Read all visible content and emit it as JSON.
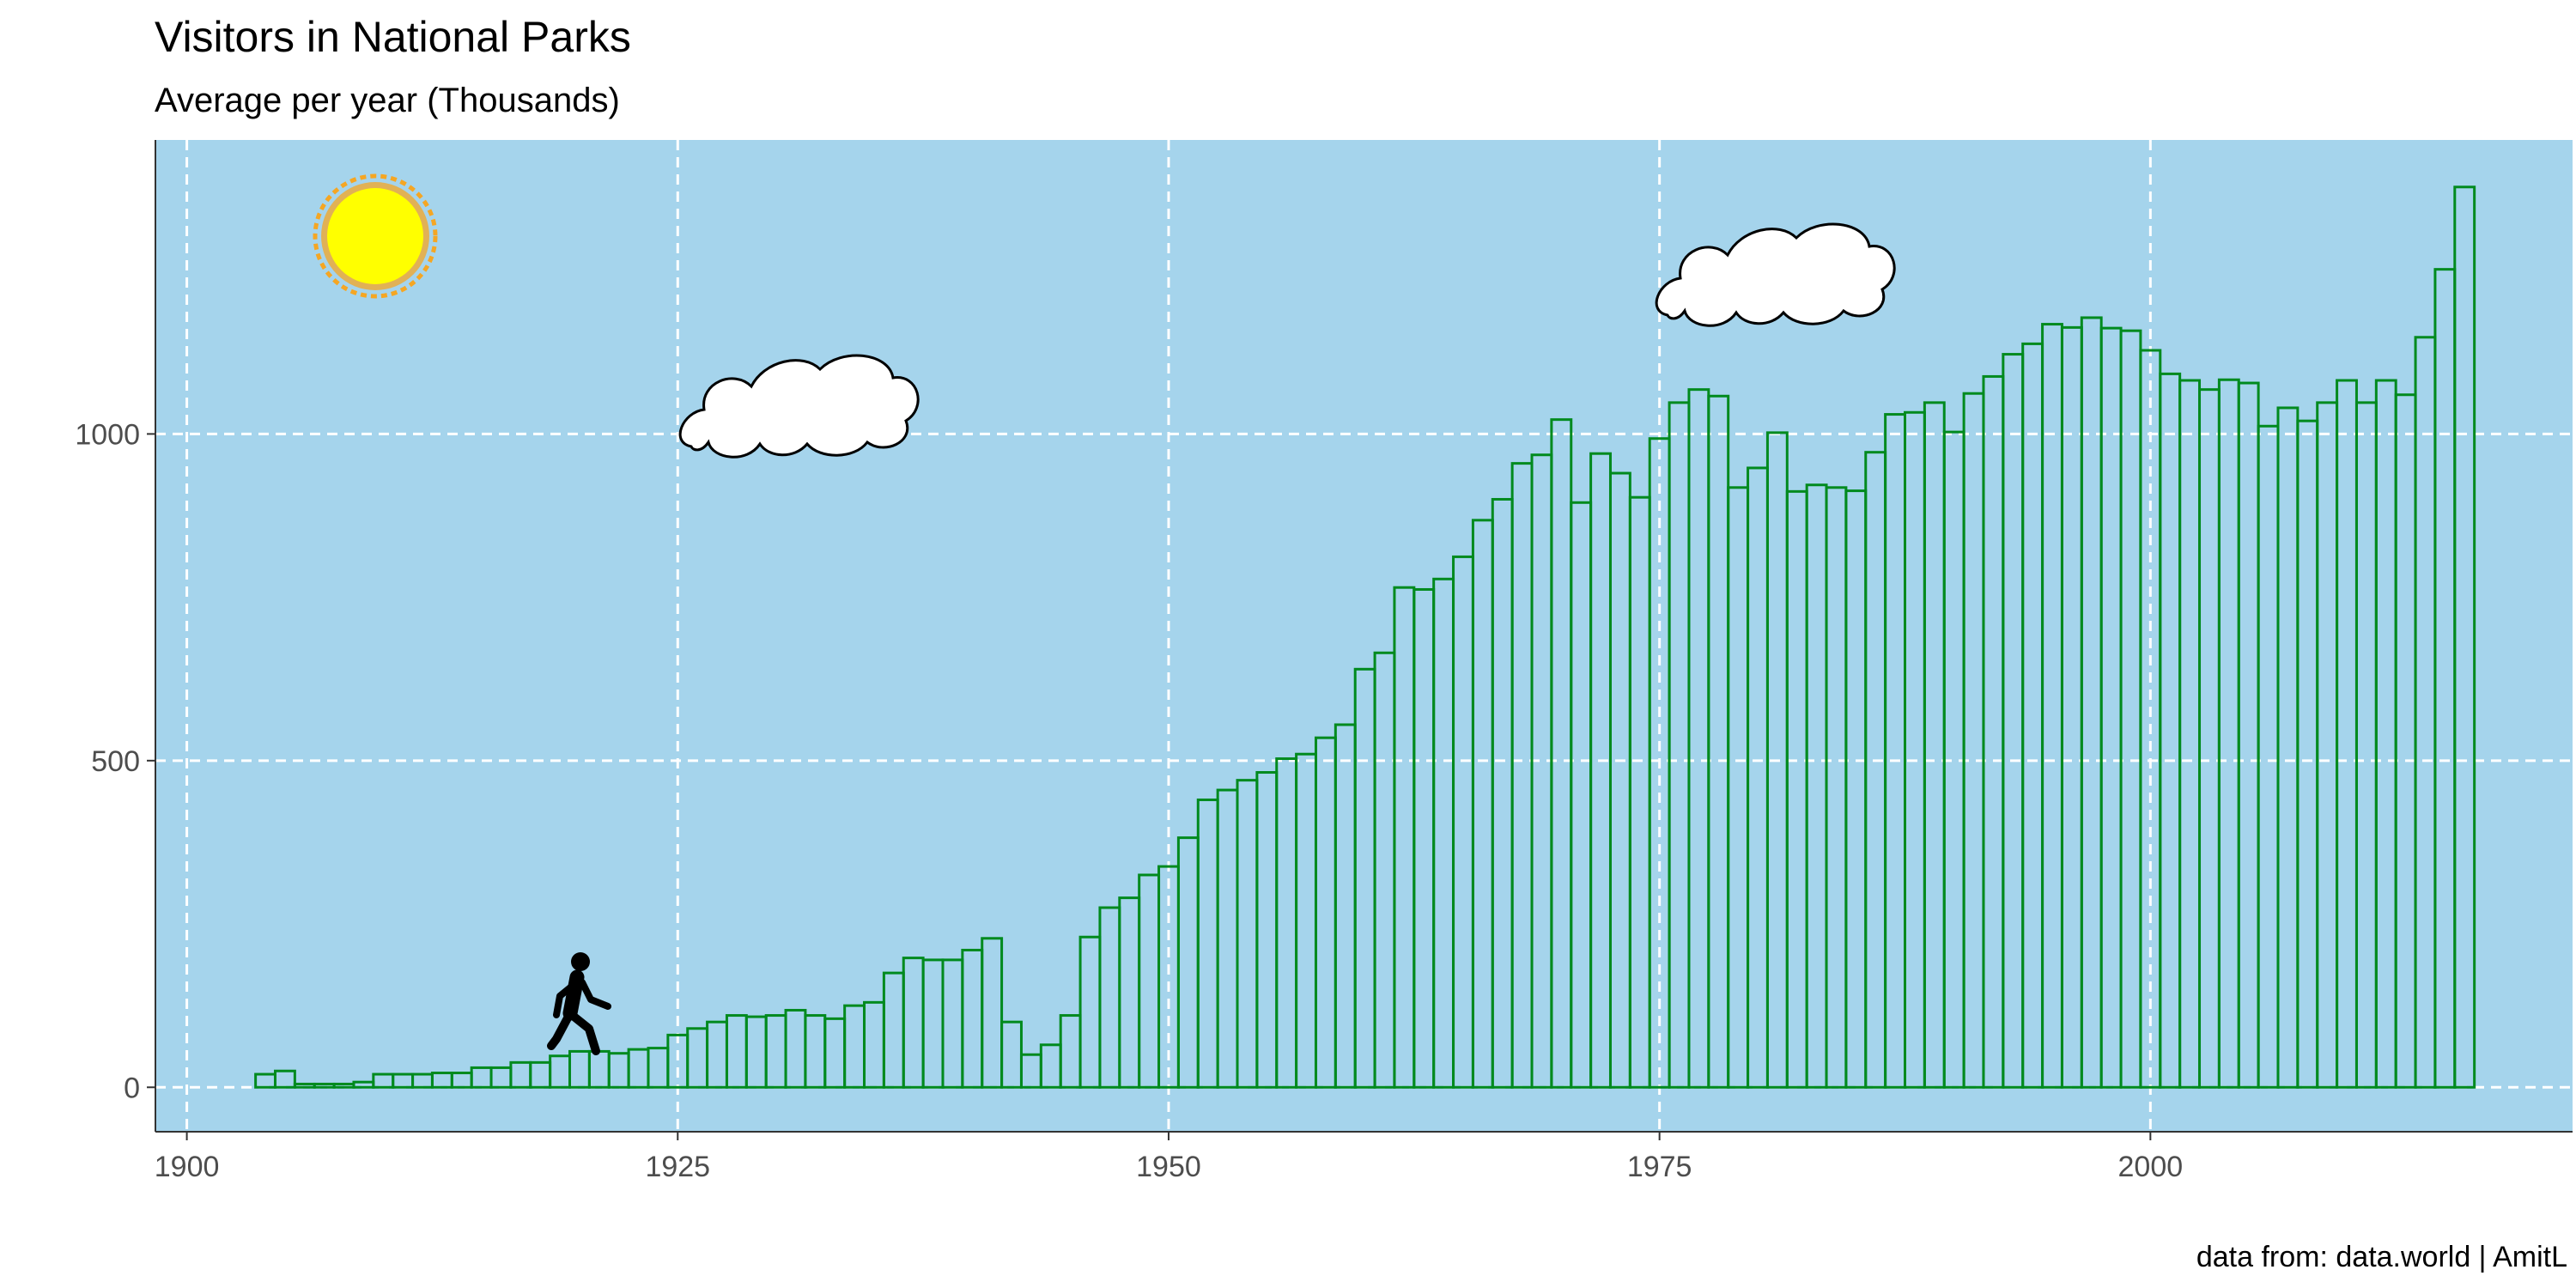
{
  "chart_data": {
    "type": "bar",
    "title": "Visitors in National Parks",
    "subtitle": "Average per year (Thousands)",
    "caption": "data from: data.world | AmitL",
    "xlabel": "",
    "ylabel": "",
    "xlim": [
      1898.4,
      2021.5
    ],
    "ylim": [
      -68,
      1450
    ],
    "x_ticks": [
      "1900",
      "1925",
      "1950",
      "1975",
      "2000"
    ],
    "y_ticks": [
      "0",
      "500",
      "1000"
    ],
    "grid": true,
    "grid_style": "dashed",
    "colors": {
      "panel": "#a5d4ec",
      "bar_outline": "#008a1e",
      "grid": "#ffffff",
      "sun": "#ffff00",
      "sun_ring": "#f5a623",
      "cloud": "#ffffff"
    },
    "icons": [
      "sun-icon",
      "cloud-icon",
      "cloud-icon",
      "walking-person-icon"
    ],
    "x": [
      1904,
      1905,
      1906,
      1907,
      1908,
      1909,
      1910,
      1911,
      1912,
      1913,
      1914,
      1915,
      1916,
      1917,
      1918,
      1919,
      1920,
      1921,
      1922,
      1923,
      1924,
      1925,
      1926,
      1927,
      1928,
      1929,
      1930,
      1931,
      1932,
      1933,
      1934,
      1935,
      1936,
      1937,
      1938,
      1939,
      1940,
      1941,
      1942,
      1943,
      1944,
      1945,
      1946,
      1947,
      1948,
      1949,
      1950,
      1951,
      1952,
      1953,
      1954,
      1955,
      1956,
      1957,
      1958,
      1959,
      1960,
      1961,
      1962,
      1963,
      1964,
      1965,
      1966,
      1967,
      1968,
      1969,
      1970,
      1971,
      1972,
      1973,
      1974,
      1975,
      1976,
      1977,
      1978,
      1979,
      1980,
      1981,
      1982,
      1983,
      1984,
      1985,
      1986,
      1987,
      1988,
      1989,
      1990,
      1991,
      1992,
      1993,
      1994,
      1995,
      1996,
      1997,
      1998,
      1999,
      2000,
      2001,
      2002,
      2003,
      2004,
      2005,
      2006,
      2007,
      2008,
      2009,
      2010,
      2011,
      2012,
      2013,
      2014,
      2015,
      2016
    ],
    "values": [
      20,
      25,
      5,
      5,
      5,
      8,
      20,
      20,
      20,
      22,
      22,
      30,
      30,
      38,
      38,
      48,
      55,
      55,
      52,
      58,
      60,
      80,
      90,
      100,
      110,
      108,
      110,
      118,
      110,
      105,
      125,
      130,
      175,
      198,
      195,
      195,
      210,
      228,
      100,
      50,
      65,
      110,
      230,
      275,
      290,
      325,
      338,
      382,
      440,
      455,
      470,
      482,
      503,
      510,
      535,
      555,
      640,
      665,
      765,
      762,
      778,
      812,
      868,
      900,
      955,
      968,
      1022,
      895,
      970,
      940,
      903,
      993,
      1048,
      1068,
      1058,
      918,
      948,
      1002,
      912,
      922,
      918,
      913,
      972,
      1030,
      1033,
      1048,
      1003,
      1062,
      1088,
      1122,
      1138,
      1168,
      1163,
      1178,
      1162,
      1158,
      1128,
      1092,
      1082,
      1068,
      1083,
      1078,
      1012,
      1040,
      1020,
      1048,
      1082,
      1048,
      1082,
      1060,
      1148,
      1252,
      1378
    ]
  }
}
